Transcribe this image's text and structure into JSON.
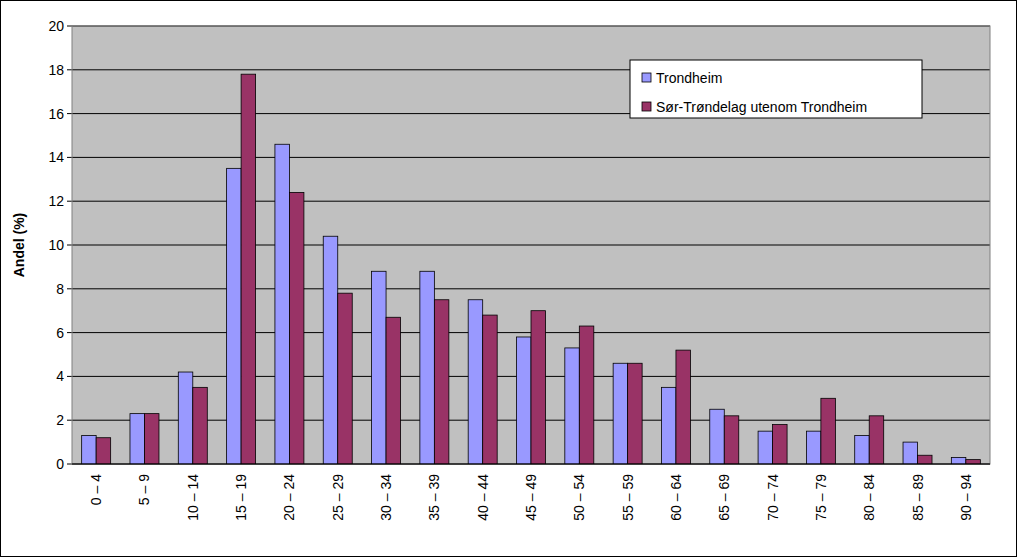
{
  "chart_data": {
    "type": "bar",
    "y_label": "Andel (%)",
    "categories": [
      "0 – 4",
      "5 – 9",
      "10 – 14",
      "15 – 19",
      "20 – 24",
      "25 – 29",
      "30 – 34",
      "35 – 39",
      "40 – 44",
      "45 – 49",
      "50 – 54",
      "55 – 59",
      "60 – 64",
      "65 – 69",
      "70 – 74",
      "75 – 79",
      "80 – 84",
      "85 – 89",
      "90 – 94"
    ],
    "series": [
      {
        "name": "Trondheim",
        "color": "#9999ff",
        "values": [
          1.3,
          2.3,
          4.2,
          13.5,
          14.6,
          10.4,
          8.8,
          8.8,
          7.5,
          5.8,
          5.3,
          4.6,
          3.5,
          2.5,
          1.5,
          1.5,
          1.3,
          1.0,
          0.3
        ]
      },
      {
        "name": "Sør-Trøndelag utenom Trondheim",
        "color": "#993366",
        "values": [
          1.2,
          2.3,
          3.5,
          17.8,
          12.4,
          7.8,
          6.7,
          7.5,
          6.8,
          7.0,
          6.3,
          4.6,
          5.2,
          2.2,
          1.8,
          3.0,
          2.2,
          0.4,
          0.2
        ]
      }
    ],
    "ylim": [
      0,
      20
    ],
    "yticks": [
      0,
      2,
      4,
      6,
      8,
      10,
      12,
      14,
      16,
      18,
      20
    ],
    "grid": true,
    "legend": "upper right"
  }
}
